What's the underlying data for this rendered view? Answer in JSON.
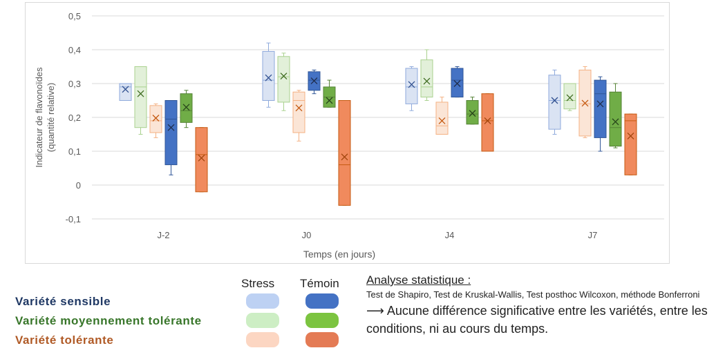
{
  "chart_data": {
    "type": "boxplot",
    "title": "",
    "xlabel": "Temps (en jours)",
    "ylabel_line1": "Indicateur de flavonoïdes",
    "ylabel_line2": "(quantité relative)",
    "ylim": [
      -0.1,
      0.5
    ],
    "yticks": [
      -0.1,
      0,
      0.1,
      0.2,
      0.3,
      0.4,
      0.5
    ],
    "ytick_labels": [
      "-0,1",
      "0",
      "0,1",
      "0,2",
      "0,3",
      "0,4",
      "0,5"
    ],
    "grid": true,
    "categories": [
      "J-2",
      "J0",
      "J4",
      "J7"
    ],
    "series": [
      {
        "name": "Variété sensible – Stress",
        "fill": "#dae3f3",
        "stroke": "#8faadc",
        "mean_color": "#2f4f8f",
        "boxes": [
          {
            "min": 0.25,
            "q1": 0.25,
            "median": 0.29,
            "q3": 0.3,
            "max": 0.3,
            "mean": 0.283
          },
          {
            "min": 0.23,
            "q1": 0.25,
            "median": 0.31,
            "q3": 0.395,
            "max": 0.42,
            "mean": 0.317
          },
          {
            "min": 0.22,
            "q1": 0.24,
            "median": 0.29,
            "q3": 0.345,
            "max": 0.35,
            "mean": 0.297
          },
          {
            "min": 0.15,
            "q1": 0.165,
            "median": 0.25,
            "q3": 0.325,
            "max": 0.34,
            "mean": 0.25
          }
        ]
      },
      {
        "name": "Variété moyennement tolérante – Stress",
        "fill": "#e2f0d9",
        "stroke": "#a9d18e",
        "mean_color": "#3e6b20",
        "boxes": [
          {
            "min": 0.15,
            "q1": 0.17,
            "median": 0.29,
            "q3": 0.35,
            "max": 0.35,
            "mean": 0.27
          },
          {
            "min": 0.22,
            "q1": 0.245,
            "median": 0.32,
            "q3": 0.38,
            "max": 0.39,
            "mean": 0.322
          },
          {
            "min": 0.25,
            "q1": 0.26,
            "median": 0.29,
            "q3": 0.37,
            "max": 0.4,
            "mean": 0.307
          },
          {
            "min": 0.22,
            "q1": 0.225,
            "median": 0.25,
            "q3": 0.3,
            "max": 0.3,
            "mean": 0.258
          }
        ]
      },
      {
        "name": "Variété tolérante – Stress",
        "fill": "#fbe5d6",
        "stroke": "#f4b183",
        "mean_color": "#c55a11",
        "boxes": [
          {
            "min": 0.14,
            "q1": 0.155,
            "median": 0.19,
            "q3": 0.235,
            "max": 0.24,
            "mean": 0.198
          },
          {
            "min": 0.13,
            "q1": 0.155,
            "median": 0.25,
            "q3": 0.275,
            "max": 0.28,
            "mean": 0.228
          },
          {
            "min": 0.15,
            "q1": 0.15,
            "median": 0.175,
            "q3": 0.245,
            "max": 0.26,
            "mean": 0.19
          },
          {
            "min": 0.14,
            "q1": 0.145,
            "median": 0.24,
            "q3": 0.34,
            "max": 0.35,
            "mean": 0.242
          }
        ]
      },
      {
        "name": "Variété sensible – Témoin",
        "fill": "#4472c4",
        "stroke": "#2f5597",
        "mean_color": "#1f2d4d",
        "boxes": [
          {
            "min": 0.03,
            "q1": 0.06,
            "median": 0.195,
            "q3": 0.25,
            "max": 0.25,
            "mean": 0.17
          },
          {
            "min": 0.27,
            "q1": 0.28,
            "median": 0.31,
            "q3": 0.335,
            "max": 0.34,
            "mean": 0.308
          },
          {
            "min": 0.26,
            "q1": 0.26,
            "median": 0.31,
            "q3": 0.345,
            "max": 0.35,
            "mean": 0.3
          },
          {
            "min": 0.1,
            "q1": 0.14,
            "median": 0.27,
            "q3": 0.31,
            "max": 0.32,
            "mean": 0.24
          }
        ]
      },
      {
        "name": "Variété moyennement tolérante – Témoin",
        "fill": "#70ad47",
        "stroke": "#548235",
        "mean_color": "#27451a",
        "boxes": [
          {
            "min": 0.17,
            "q1": 0.185,
            "median": 0.22,
            "q3": 0.27,
            "max": 0.28,
            "mean": 0.23
          },
          {
            "min": 0.23,
            "q1": 0.23,
            "median": 0.26,
            "q3": 0.29,
            "max": 0.31,
            "mean": 0.25
          },
          {
            "min": 0.18,
            "q1": 0.18,
            "median": 0.21,
            "q3": 0.25,
            "max": 0.26,
            "mean": 0.212
          },
          {
            "min": 0.11,
            "q1": 0.115,
            "median": 0.17,
            "q3": 0.275,
            "max": 0.3,
            "mean": 0.187
          }
        ]
      },
      {
        "name": "Variété tolérante – Témoin",
        "fill": "#f08a5d",
        "stroke": "#c55a11",
        "mean_color": "#a0440c",
        "boxes": [
          {
            "min": -0.02,
            "q1": -0.02,
            "median": 0.09,
            "q3": 0.17,
            "max": 0.17,
            "mean": 0.08
          },
          {
            "min": -0.06,
            "q1": -0.06,
            "median": 0.06,
            "q3": 0.25,
            "max": 0.25,
            "mean": 0.083
          },
          {
            "min": 0.1,
            "q1": 0.1,
            "median": 0.19,
            "q3": 0.27,
            "max": 0.27,
            "mean": 0.19
          },
          {
            "min": 0.03,
            "q1": 0.03,
            "median": 0.19,
            "q3": 0.21,
            "max": 0.21,
            "mean": 0.145
          }
        ]
      }
    ]
  },
  "legend": {
    "col_stress": "Stress",
    "col_temoin": "Témoin",
    "rows": [
      {
        "label": "Variété sensible",
        "text_color": "#1f3864",
        "stress_color": "#bdd1f3",
        "temoin_color": "#4472c4"
      },
      {
        "label": "Variété moyennement tolérante",
        "text_color": "#38762a",
        "stress_color": "#cdeec4",
        "temoin_color": "#7cc440"
      },
      {
        "label": "Variété tolérante",
        "text_color": "#b05a26",
        "stress_color": "#fcd6c2",
        "temoin_color": "#e47b55"
      }
    ]
  },
  "stats": {
    "title": "Analyse statistique :",
    "tests": "Test de Shapiro, Test de Kruskal-Wallis, Test posthoc Wilcoxon, méthode Bonferroni",
    "conclusion": "⟶ Aucune différence significative entre les variétés, entre les conditions, ni au cours du temps."
  }
}
